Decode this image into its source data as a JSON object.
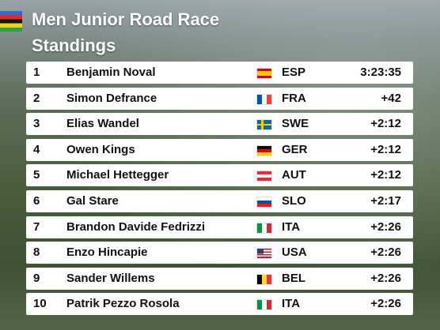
{
  "header": {
    "title": "Men Junior Road Race",
    "subtitle": "Standings"
  },
  "table": {
    "rows": [
      {
        "rank": "1",
        "name": "Benjamin Noval",
        "country": "ESP",
        "time": "3:23:35"
      },
      {
        "rank": "2",
        "name": "Simon Defrance",
        "country": "FRA",
        "time": "+42"
      },
      {
        "rank": "3",
        "name": "Elias Wandel",
        "country": "SWE",
        "time": "+2:12"
      },
      {
        "rank": "4",
        "name": "Owen Kings",
        "country": "GER",
        "time": "+2:12"
      },
      {
        "rank": "5",
        "name": "Michael Hettegger",
        "country": "AUT",
        "time": "+2:12"
      },
      {
        "rank": "6",
        "name": "Gal Stare",
        "country": "SLO",
        "time": "+2:17"
      },
      {
        "rank": "7",
        "name": "Brandon Davide Fedrizzi",
        "country": "ITA",
        "time": "+2:26"
      },
      {
        "rank": "8",
        "name": "Enzo Hincapie",
        "country": "USA",
        "time": "+2:26"
      },
      {
        "rank": "9",
        "name": "Sander Willems",
        "country": "BEL",
        "time": "+2:26"
      },
      {
        "rank": "10",
        "name": "Patrik Pezzo Rosola",
        "country": "ITA",
        "time": "+2:26"
      }
    ]
  }
}
